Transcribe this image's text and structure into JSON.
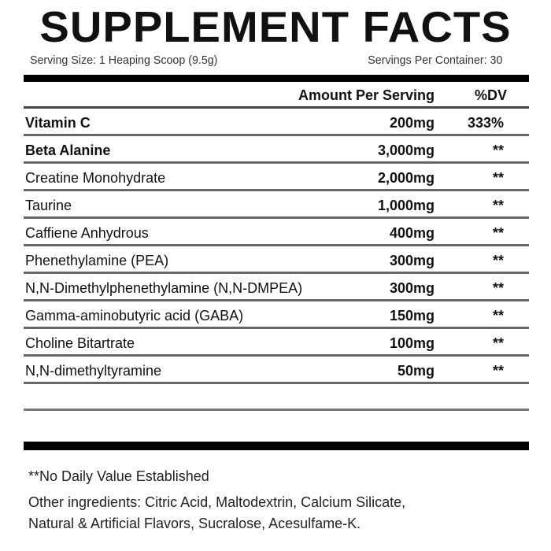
{
  "title": "SUPPLEMENT FACTS",
  "serving_size": "Serving Size: 1 Heaping Scoop (9.5g)",
  "servings_per_container": "Servings Per Container: 30",
  "header": {
    "amount": "Amount Per Serving",
    "dv": "%DV"
  },
  "rows": [
    {
      "name": "Vitamin C",
      "amount": "200mg",
      "dv": "333%"
    },
    {
      "name": "Beta Alanine",
      "amount": "3,000mg",
      "dv": "**"
    },
    {
      "name": "Creatine Monohydrate",
      "amount": "2,000mg",
      "dv": "**"
    },
    {
      "name": "Taurine",
      "amount": "1,000mg",
      "dv": "**"
    },
    {
      "name": "Caffiene Anhydrous",
      "amount": "400mg",
      "dv": "**"
    },
    {
      "name": "Phenethylamine (PEA)",
      "amount": "300mg",
      "dv": "**"
    },
    {
      "name": "N,N-Dimethylphenethylamine (N,N-DMPEA)",
      "amount": "300mg",
      "dv": "**"
    },
    {
      "name": "Gamma-aminobutyric acid (GABA)",
      "amount": "150mg",
      "dv": "**"
    },
    {
      "name": "Choline Bitartrate",
      "amount": "100mg",
      "dv": "**"
    },
    {
      "name": "N,N-dimethyltyramine",
      "amount": "50mg",
      "dv": "**"
    }
  ],
  "footnote": "**No Daily Value Established",
  "other_ingredients_1": "Other ingredients: Citric Acid, Maltodextrin, Calcium Silicate,",
  "other_ingredients_2": "Natural & Artificial Flavors, Sucralose, Acesulfame-K."
}
